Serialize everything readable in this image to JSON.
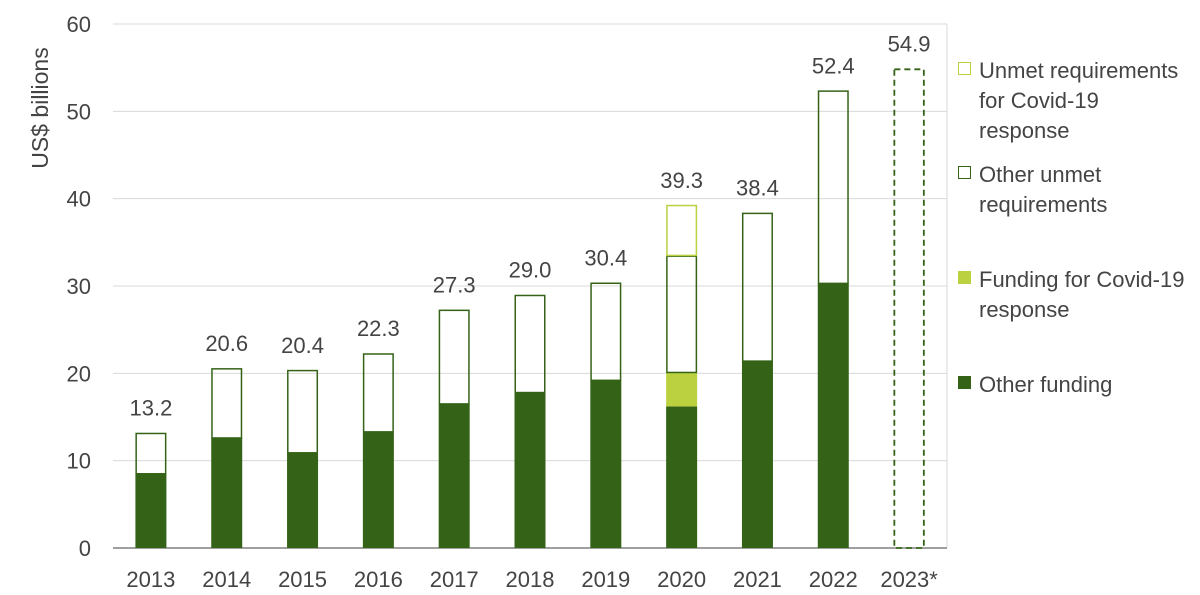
{
  "chart_data": {
    "type": "bar",
    "stacked": true,
    "ylabel": "US$ billions",
    "xlabel": "",
    "ylim": [
      0,
      60
    ],
    "yticks": [
      0,
      10,
      20,
      30,
      40,
      50,
      60
    ],
    "grid": true,
    "legend_position": "right",
    "categories": [
      "2013",
      "2014",
      "2015",
      "2016",
      "2017",
      "2018",
      "2019",
      "2020",
      "2021",
      "2022",
      "2023*"
    ],
    "series": [
      {
        "name": "Other funding",
        "style": "filled",
        "color": "#346317",
        "values": [
          8.5,
          12.6,
          10.9,
          13.3,
          16.5,
          17.8,
          19.2,
          16.2,
          21.4,
          30.3,
          0
        ]
      },
      {
        "name": "Funding for Covid-19 response",
        "style": "filled",
        "color": "#bcd13f",
        "values": [
          0,
          0,
          0,
          0,
          0,
          0,
          0,
          3.9,
          0,
          0,
          0
        ]
      },
      {
        "name": "Other unmet requirements",
        "style": "outline",
        "color": "#346317",
        "values": [
          4.7,
          8.0,
          9.5,
          9.0,
          10.8,
          11.2,
          11.2,
          13.4,
          17.0,
          22.1,
          54.9
        ]
      },
      {
        "name": "Unmet requirements for Covid-19 response",
        "style": "outline",
        "color": "#bcd13f",
        "values": [
          0,
          0,
          0,
          0,
          0,
          0,
          0,
          5.8,
          0,
          0,
          0
        ]
      }
    ],
    "totals": [
      13.2,
      20.6,
      20.4,
      22.3,
      27.3,
      29.0,
      30.4,
      39.3,
      38.4,
      52.4,
      54.9
    ],
    "total_labels": [
      "13.2",
      "20.6",
      "20.4",
      "22.3",
      "27.3",
      "29.0",
      "30.4",
      "39.3",
      "38.4",
      "52.4",
      "54.9"
    ],
    "dashed_categories": [
      "2023*"
    ]
  },
  "legend": {
    "items": [
      {
        "label": "Unmet requirements for Covid-19 response",
        "style": "outline",
        "color": "#bcd13f"
      },
      {
        "label": "Other unmet requirements",
        "style": "outline",
        "color": "#346317"
      },
      {
        "label": "Funding for Covid-19 response",
        "style": "filled",
        "color": "#bcd13f"
      },
      {
        "label": "Other funding",
        "style": "filled",
        "color": "#346317"
      }
    ]
  }
}
